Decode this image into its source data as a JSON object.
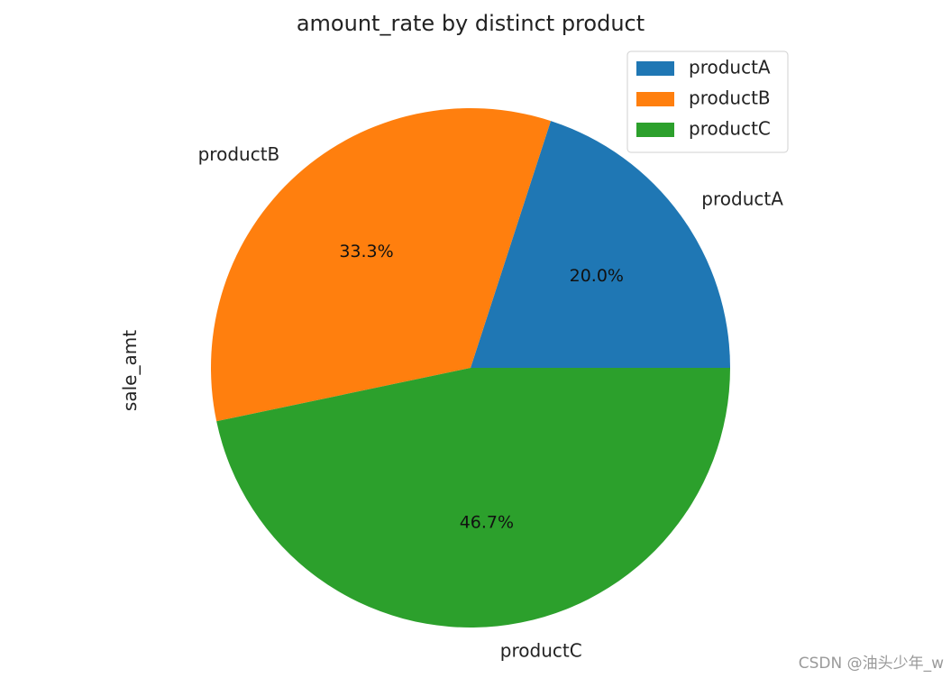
{
  "chart_data": {
    "type": "pie",
    "title": "amount_rate by distinct product",
    "ylabel": "sale_amt",
    "categories": [
      "productA",
      "productB",
      "productC"
    ],
    "values": [
      20.0,
      33.3,
      46.7
    ],
    "percent_labels": [
      "20.0%",
      "33.3%",
      "46.7%"
    ],
    "colors": [
      "#1f77b4",
      "#ff7f0e",
      "#2ca02c"
    ],
    "start_angle_deg": 0,
    "direction": "counterclockwise",
    "legend": {
      "placement": "top-right",
      "entries": [
        "productA",
        "productB",
        "productC"
      ]
    }
  },
  "watermark": "CSDN @油头少年_w"
}
